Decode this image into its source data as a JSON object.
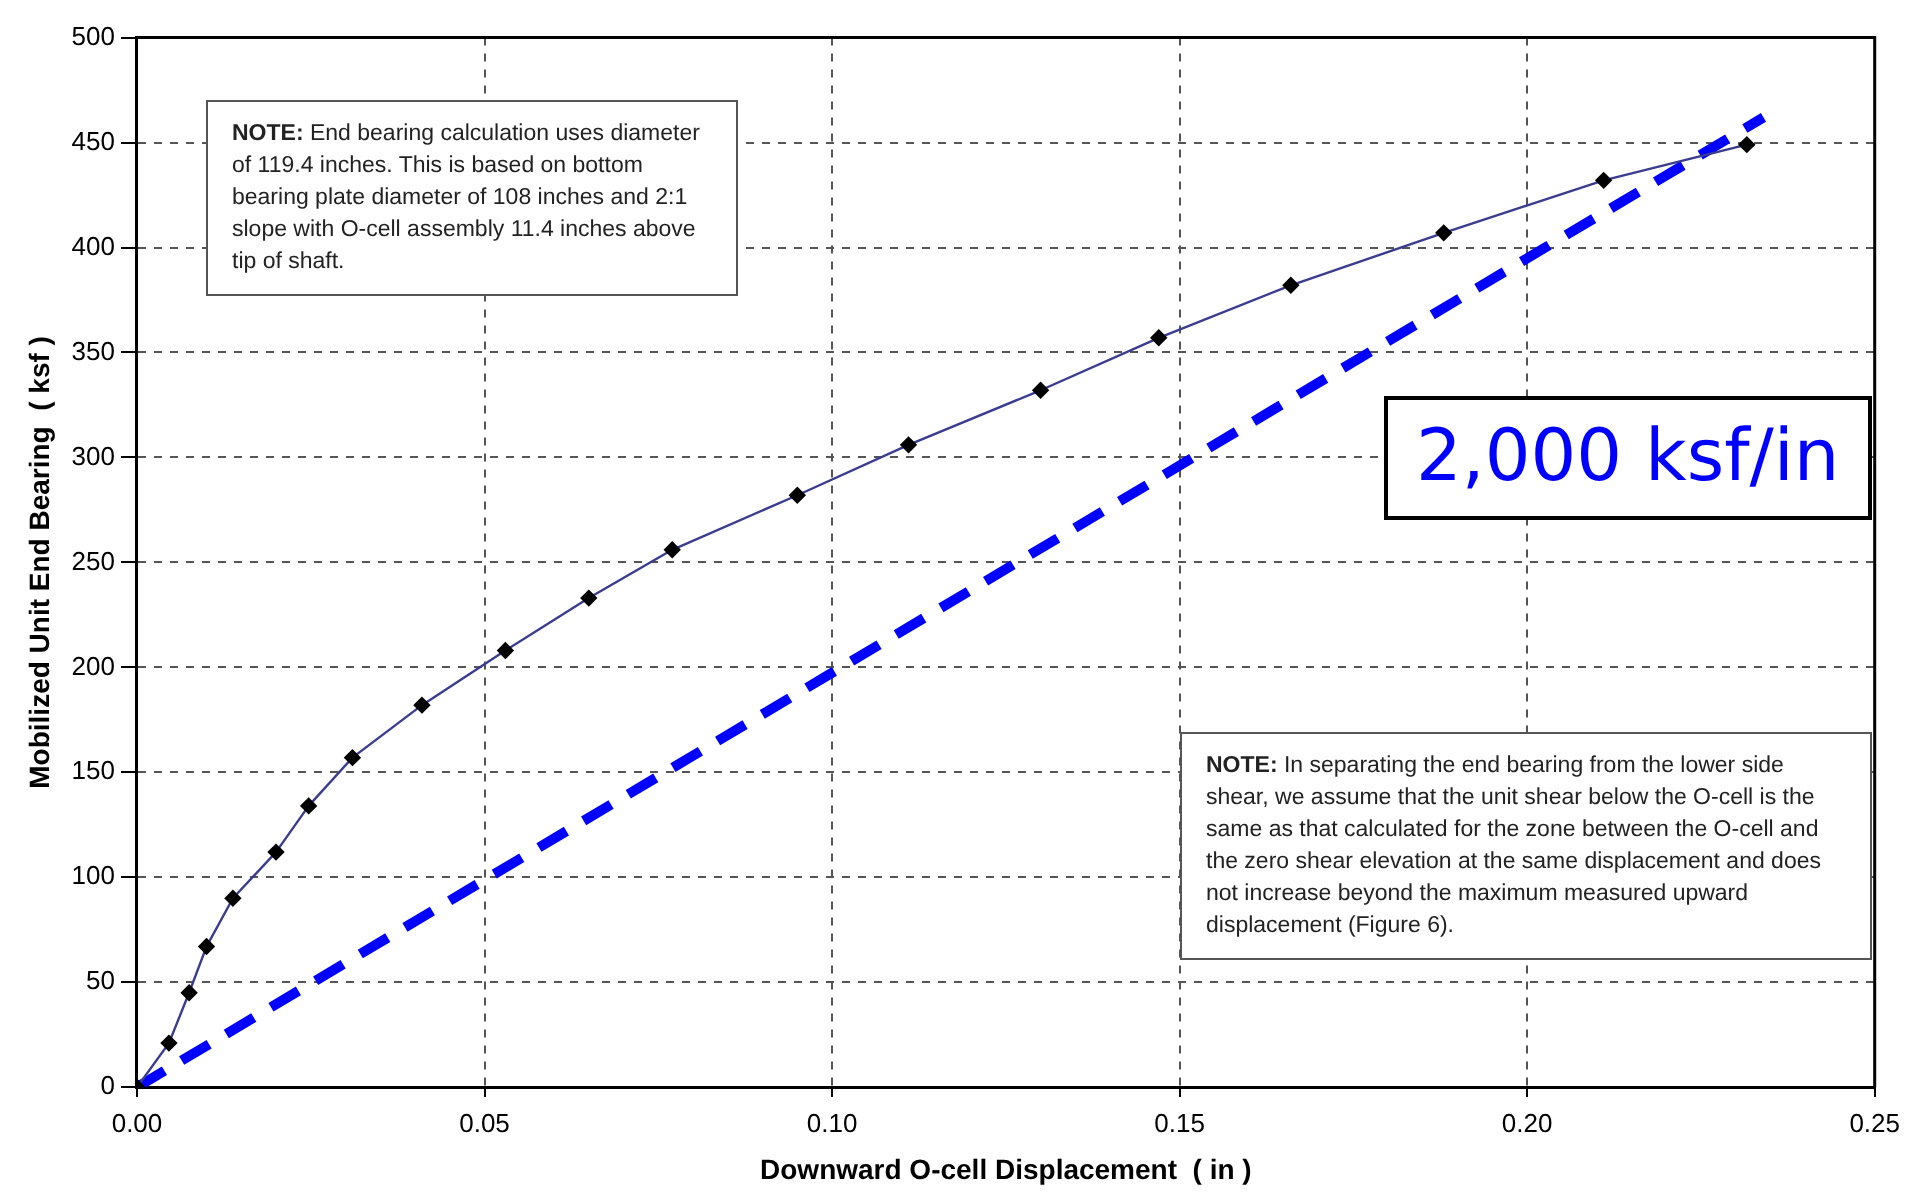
{
  "chart_data": {
    "type": "line",
    "xlabel": "Downward O-cell Displacement  ( in )",
    "ylabel": "Mobilized Unit End Bearing  ( ksf )",
    "xlim": [
      0,
      0.25
    ],
    "ylim": [
      0,
      500
    ],
    "xticks": [
      {
        "value": 0,
        "label": "0.00"
      },
      {
        "value": 0.05,
        "label": "0.05"
      },
      {
        "value": 0.1,
        "label": "0.10"
      },
      {
        "value": 0.15,
        "label": "0.15"
      },
      {
        "value": 0.2,
        "label": "0.20"
      },
      {
        "value": 0.25,
        "label": "0.25"
      }
    ],
    "yticks": [
      0,
      50,
      100,
      150,
      200,
      250,
      300,
      350,
      400,
      450,
      500
    ],
    "grid": true,
    "legend": false,
    "series": [
      {
        "color": "#3a3d8f",
        "marker": "diamond",
        "line_style": "solid",
        "x": [
          0,
          0.0046,
          0.0075,
          0.01,
          0.0138,
          0.02,
          0.0247,
          0.031,
          0.041,
          0.053,
          0.065,
          0.077,
          0.095,
          0.111,
          0.13,
          0.147,
          0.166,
          0.188,
          0.211,
          0.2316
        ],
        "values": [
          0,
          21,
          45,
          67,
          90,
          112,
          134,
          157,
          182,
          208,
          233,
          256,
          282,
          306,
          332,
          357,
          382,
          407,
          432,
          449
        ]
      },
      {
        "color": "#0000ff",
        "marker": "none",
        "line_style": "dashed",
        "x": [
          0,
          0.234
        ],
        "values": [
          0,
          462
        ]
      }
    ],
    "annotations": [
      "NOTE:  End bearing calculation uses diameter of 119.4 inches.  This is based on bottom bearing plate diameter of 108 inches and 2:1 slope with O-cell assembly 11.4 inches above tip of shaft.",
      "NOTE:  In separating the end bearing from the lower side shear, we assume that the unit shear below the O-cell is the same as that calculated for the zone between the O-cell and the zero shear elevation at the same displacement and does not increase beyond the maximum measured upward displacement (Figure 6).",
      "2,000 ksf/in"
    ]
  }
}
